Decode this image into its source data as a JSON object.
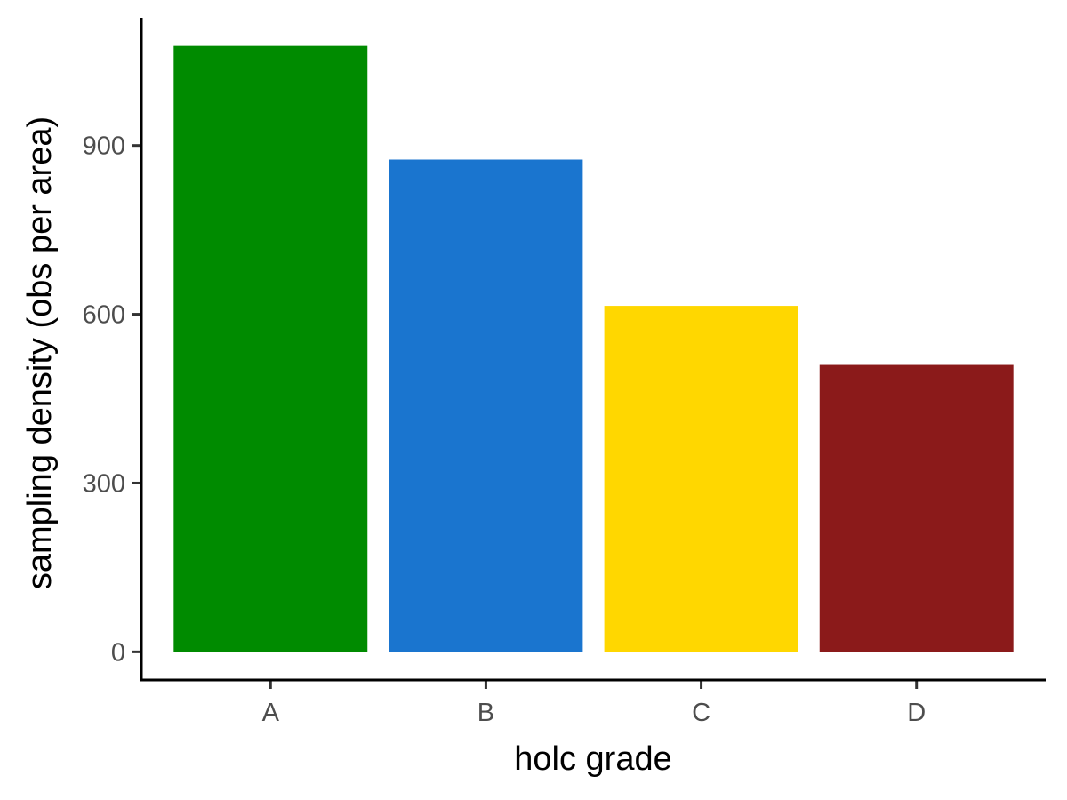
{
  "chart_data": {
    "type": "bar",
    "title": "",
    "xlabel": "holc grade",
    "ylabel": "sampling density (obs per area)",
    "categories": [
      "A",
      "B",
      "C",
      "D"
    ],
    "values": [
      1077,
      875,
      615,
      510
    ],
    "colors": [
      "#008B00",
      "#1A75CF",
      "#FFD700",
      "#8B1A1A"
    ],
    "ylim": [
      -50,
      1127
    ],
    "yticks": [
      0,
      300,
      600,
      900
    ],
    "grid": false,
    "legend": "none"
  }
}
